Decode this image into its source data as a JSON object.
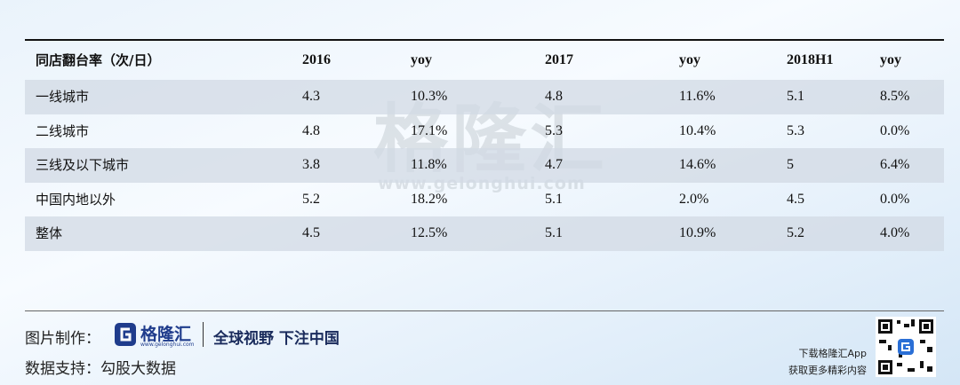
{
  "table": {
    "header": [
      "同店翻台率（次/日）",
      "2016",
      "yoy",
      "2017",
      "yoy",
      "2018H1",
      "yoy"
    ],
    "rows": [
      [
        "一线城市",
        "4.3",
        "10.3%",
        "4.8",
        "11.6%",
        "5.1",
        "8.5%"
      ],
      [
        "二线城市",
        "4.8",
        "17.1%",
        "5.3",
        "10.4%",
        "5.3",
        "0.0%"
      ],
      [
        "三线及以下城市",
        "3.8",
        "11.8%",
        "4.7",
        "14.6%",
        "5",
        "6.4%"
      ],
      [
        "中国内地以外",
        "5.2",
        "18.2%",
        "5.1",
        "2.0%",
        "4.5",
        "0.0%"
      ],
      [
        "整体",
        "4.5",
        "12.5%",
        "5.1",
        "10.9%",
        "5.2",
        "4.0%"
      ]
    ]
  },
  "watermark": {
    "name": "格隆汇",
    "url": "www.gelonghui.com"
  },
  "footer": {
    "made_by_label": "图片制作：",
    "logo_text": "格隆汇",
    "logo_url": "www.gelonghui.com",
    "slogan": "全球视野 下注中国",
    "data_source": "数据支持：勾股大数据",
    "app_line1": "下载格隆汇App",
    "app_line2": "获取更多精彩内容"
  }
}
